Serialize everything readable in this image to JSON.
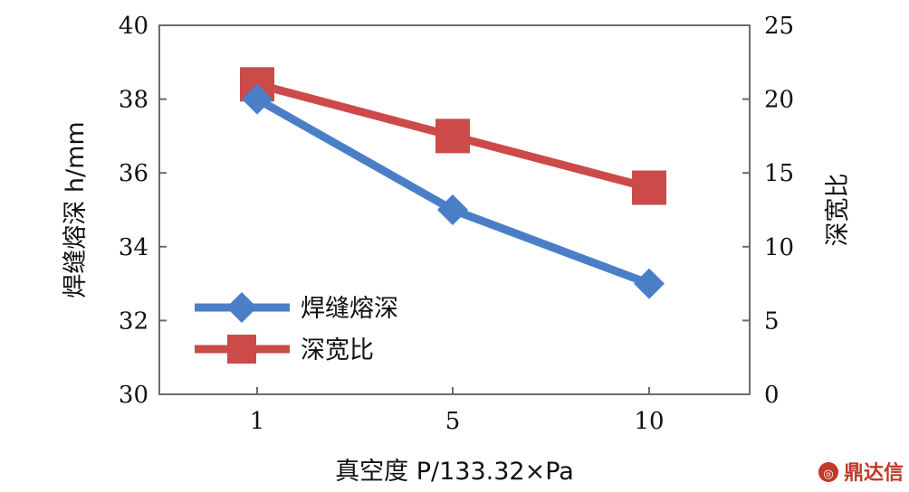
{
  "chart_data": {
    "type": "line",
    "categories": [
      "1",
      "5",
      "10"
    ],
    "xlabel": "真空度 P/133.32×Pa",
    "ylabel": "焊缝熔深 h/mm",
    "y2label": "深宽比",
    "ylim": [
      30,
      40
    ],
    "y2lim": [
      0,
      25
    ],
    "yticks": [
      "30",
      "32",
      "34",
      "36",
      "38",
      "40"
    ],
    "y2ticks": [
      "0",
      "5",
      "10",
      "15",
      "20",
      "25"
    ],
    "grid": false,
    "legend_position": "bottom-left",
    "series": [
      {
        "name": "焊缝熔深",
        "axis": "left",
        "values": [
          38.0,
          35.0,
          33.0
        ],
        "color": "#4a7fc8",
        "marker": "diamond"
      },
      {
        "name": "深宽比",
        "axis": "right",
        "values": [
          21.0,
          17.5,
          14.0
        ],
        "color": "#cc4a4a",
        "marker": "square"
      }
    ]
  },
  "watermark": {
    "text": "鼎达信",
    "icon": "logo-icon",
    "color": "#c0392b"
  }
}
